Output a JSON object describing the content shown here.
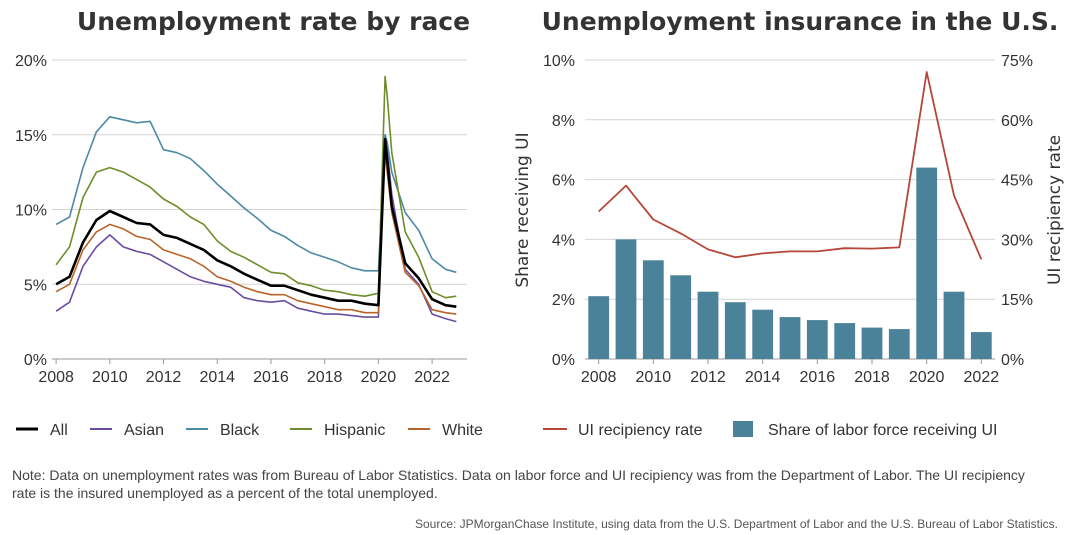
{
  "note": "Note: Data on unemployment rates was from Bureau of Labor Statistics. Data on labor force and UI recipiency was from the Department of Labor. The UI recipiency rate is the insured unemployed as a percent of the total unemployed.",
  "source": "Source: JPMorganChase Institute, using data from the U.S. Department of Labor and the U.S. Bureau of Labor Statistics.",
  "chart_data": [
    {
      "type": "line",
      "title": "Unemployment rate by race",
      "xlabel": "",
      "ylabel": "",
      "x_ticks": [
        "2008",
        "2010",
        "2012",
        "2014",
        "2016",
        "2018",
        "2020",
        "2022"
      ],
      "y_ticks": [
        "0%",
        "5%",
        "10%",
        "15%",
        "20%"
      ],
      "xlim": [
        2008,
        2023
      ],
      "ylim": [
        0,
        20
      ],
      "grid": true,
      "legend_position": "bottom",
      "x": [
        2008.0,
        2008.5,
        2009.0,
        2009.5,
        2010.0,
        2010.5,
        2011.0,
        2011.5,
        2012.0,
        2012.5,
        2013.0,
        2013.5,
        2014.0,
        2014.5,
        2015.0,
        2015.5,
        2016.0,
        2016.5,
        2017.0,
        2017.5,
        2018.0,
        2018.5,
        2019.0,
        2019.5,
        2020.0,
        2020.25,
        2020.33,
        2020.5,
        2021.0,
        2021.5,
        2022.0,
        2022.5,
        2022.9
      ],
      "series": [
        {
          "name": "All",
          "color": "#000000",
          "values": [
            5.0,
            5.5,
            7.8,
            9.3,
            9.9,
            9.5,
            9.1,
            9.0,
            8.3,
            8.1,
            7.7,
            7.3,
            6.6,
            6.2,
            5.7,
            5.3,
            4.9,
            4.9,
            4.6,
            4.3,
            4.1,
            3.9,
            3.9,
            3.7,
            3.6,
            14.7,
            13.3,
            10.2,
            6.4,
            5.4,
            4.0,
            3.6,
            3.5
          ]
        },
        {
          "name": "Asian",
          "color": "#6a4ca3",
          "values": [
            3.2,
            3.8,
            6.2,
            7.5,
            8.3,
            7.5,
            7.2,
            7.0,
            6.5,
            6.0,
            5.5,
            5.2,
            5.0,
            4.8,
            4.1,
            3.9,
            3.8,
            3.9,
            3.4,
            3.2,
            3.0,
            3.0,
            2.9,
            2.8,
            2.8,
            15.0,
            14.0,
            11.0,
            6.0,
            5.0,
            3.0,
            2.7,
            2.5
          ]
        },
        {
          "name": "Black",
          "color": "#4d8aa5",
          "values": [
            9.0,
            9.5,
            12.8,
            15.2,
            16.2,
            16.0,
            15.8,
            15.9,
            14.0,
            13.8,
            13.4,
            12.6,
            11.7,
            10.9,
            10.1,
            9.4,
            8.6,
            8.2,
            7.6,
            7.1,
            6.8,
            6.5,
            6.1,
            5.9,
            5.9,
            15.0,
            14.5,
            12.5,
            9.8,
            8.6,
            6.7,
            6.0,
            5.8
          ]
        },
        {
          "name": "Hispanic",
          "color": "#6e8d2b",
          "values": [
            6.3,
            7.5,
            10.8,
            12.5,
            12.8,
            12.5,
            12.0,
            11.5,
            10.7,
            10.2,
            9.5,
            9.0,
            7.9,
            7.2,
            6.8,
            6.3,
            5.8,
            5.7,
            5.1,
            4.9,
            4.6,
            4.5,
            4.3,
            4.2,
            4.4,
            18.9,
            17.6,
            13.8,
            8.5,
            6.8,
            4.5,
            4.1,
            4.2
          ]
        },
        {
          "name": "White",
          "color": "#b8652a",
          "values": [
            4.5,
            5.0,
            7.3,
            8.5,
            9.0,
            8.7,
            8.2,
            8.0,
            7.3,
            7.0,
            6.7,
            6.2,
            5.5,
            5.2,
            4.8,
            4.5,
            4.3,
            4.3,
            3.9,
            3.7,
            3.5,
            3.3,
            3.3,
            3.1,
            3.1,
            14.2,
            12.5,
            9.8,
            5.8,
            4.9,
            3.3,
            3.1,
            3.0
          ]
        }
      ]
    },
    {
      "type": "bar",
      "title": "Unemployment insurance in the U.S.",
      "xlabel": "",
      "ylabel": "Share receiving UI",
      "y2label": "UI recipiency rate",
      "x_ticks": [
        "2008",
        "2010",
        "2012",
        "2014",
        "2016",
        "2018",
        "2020",
        "2022"
      ],
      "y_ticks": [
        "0%",
        "2%",
        "4%",
        "6%",
        "8%",
        "10%"
      ],
      "y2_ticks": [
        "0%",
        "15%",
        "30%",
        "45%",
        "60%",
        "75%"
      ],
      "ylim": [
        0,
        10
      ],
      "y2lim": [
        0,
        75
      ],
      "grid": true,
      "legend_position": "bottom",
      "categories": [
        2008,
        2009,
        2010,
        2011,
        2012,
        2013,
        2014,
        2015,
        2016,
        2017,
        2018,
        2019,
        2020,
        2021,
        2022
      ],
      "series": [
        {
          "name": "Share of labor force receiving UI",
          "type": "bar",
          "axis": "left",
          "color": "#4a8299",
          "values": [
            2.1,
            4.0,
            3.3,
            2.8,
            2.25,
            1.9,
            1.65,
            1.4,
            1.3,
            1.2,
            1.05,
            1.0,
            6.4,
            2.25,
            0.9
          ]
        },
        {
          "name": "UI recipiency rate",
          "type": "line",
          "axis": "right",
          "color": "#b5473a",
          "values": [
            37.0,
            43.5,
            35.0,
            31.5,
            27.5,
            25.5,
            26.5,
            27.0,
            27.0,
            27.8,
            27.7,
            28.0,
            72.0,
            41.0,
            25.0
          ]
        }
      ]
    }
  ]
}
